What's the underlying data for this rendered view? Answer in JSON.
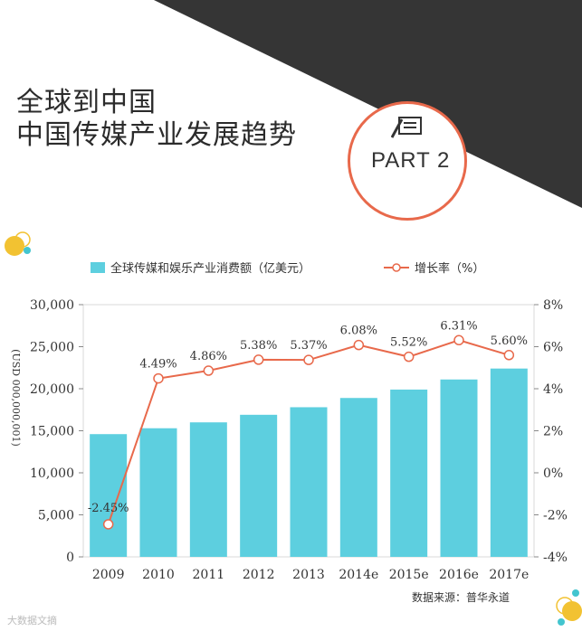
{
  "header": {
    "title_line1": "全球到中国",
    "title_line2": "中国传媒产业发展趋势",
    "badge": "PART 2",
    "badge_icon": "document-pen-icon"
  },
  "chart_data": {
    "type": "bar",
    "categories": [
      "2009",
      "2010",
      "2011",
      "2012",
      "2013",
      "2014e",
      "2015e",
      "2016e",
      "2017e"
    ],
    "series": [
      {
        "name": "全球传媒和娱乐产业消费额（亿美元）",
        "type": "bar",
        "axis": "left",
        "values": [
          14600,
          15300,
          16000,
          16900,
          17800,
          18900,
          19900,
          21100,
          22400
        ]
      },
      {
        "name": "增长率（%）",
        "type": "line",
        "axis": "right",
        "values": [
          -2.45,
          4.49,
          4.86,
          5.38,
          5.37,
          6.08,
          5.52,
          6.31,
          5.6
        ],
        "labels": [
          "-2.45%",
          "4.49%",
          "4.86%",
          "5.38%",
          "5.37%",
          "6.08%",
          "5.52%",
          "6.31%",
          "5.60%"
        ]
      }
    ],
    "ylabel": "(USD 000,000,001)",
    "ylim": [
      0,
      30000
    ],
    "yticks": [
      "0",
      "5,000",
      "10,000",
      "15,000",
      "20,000",
      "25,000",
      "30,000"
    ],
    "y2lim": [
      -4,
      8
    ],
    "y2ticks": [
      "-4%",
      "-2%",
      "0%",
      "2%",
      "4%",
      "6%",
      "8%"
    ],
    "legend_position": "top"
  },
  "footer": {
    "source": "数据来源：普华永道",
    "watermark": "大数据文摘"
  },
  "colors": {
    "bar": "#5dcfdf",
    "line": "#e8694b",
    "dark": "#333333",
    "gold": "#f2c232",
    "teal": "#43c5cf"
  }
}
